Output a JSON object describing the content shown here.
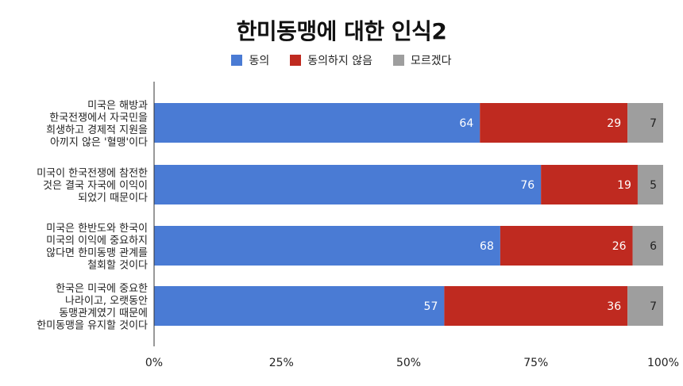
{
  "chart_data": {
    "type": "bar",
    "orientation": "horizontal",
    "stacked": true,
    "title": "한미동맹에 대한 인식2",
    "categories": [
      [
        "미국은 해방과",
        "한국전쟁에서 자국민을",
        "희생하고 경제적 지원을",
        "아끼지 않은 '혈맹'이다"
      ],
      [
        "미국이 한국전쟁에 참전한",
        "것은 결국 자국에 이익이",
        "되었기 때문이다"
      ],
      [
        "미국은 한반도와 한국이",
        "미국의 이익에 중요하지",
        "않다면 한미동맹 관계를",
        "철회할 것이다"
      ],
      [
        "한국은 미국에 중요한",
        "나라이고, 오랫동안",
        "동맹관계였기 때문에",
        "한미동맹을 유지할 것이다"
      ]
    ],
    "series": [
      {
        "name": "동의",
        "color": "#4a7bd4",
        "values": [
          64,
          76,
          68,
          57
        ]
      },
      {
        "name": "동의하지 않음",
        "color": "#bf2a20",
        "values": [
          29,
          19,
          26,
          36
        ]
      },
      {
        "name": "모르겠다",
        "color": "#9e9e9e",
        "values": [
          7,
          5,
          6,
          7
        ]
      }
    ],
    "x_ticks": [
      "0%",
      "25%",
      "50%",
      "75%",
      "100%"
    ],
    "xlim": [
      0,
      100
    ],
    "grid": false,
    "legend_position": "top"
  }
}
